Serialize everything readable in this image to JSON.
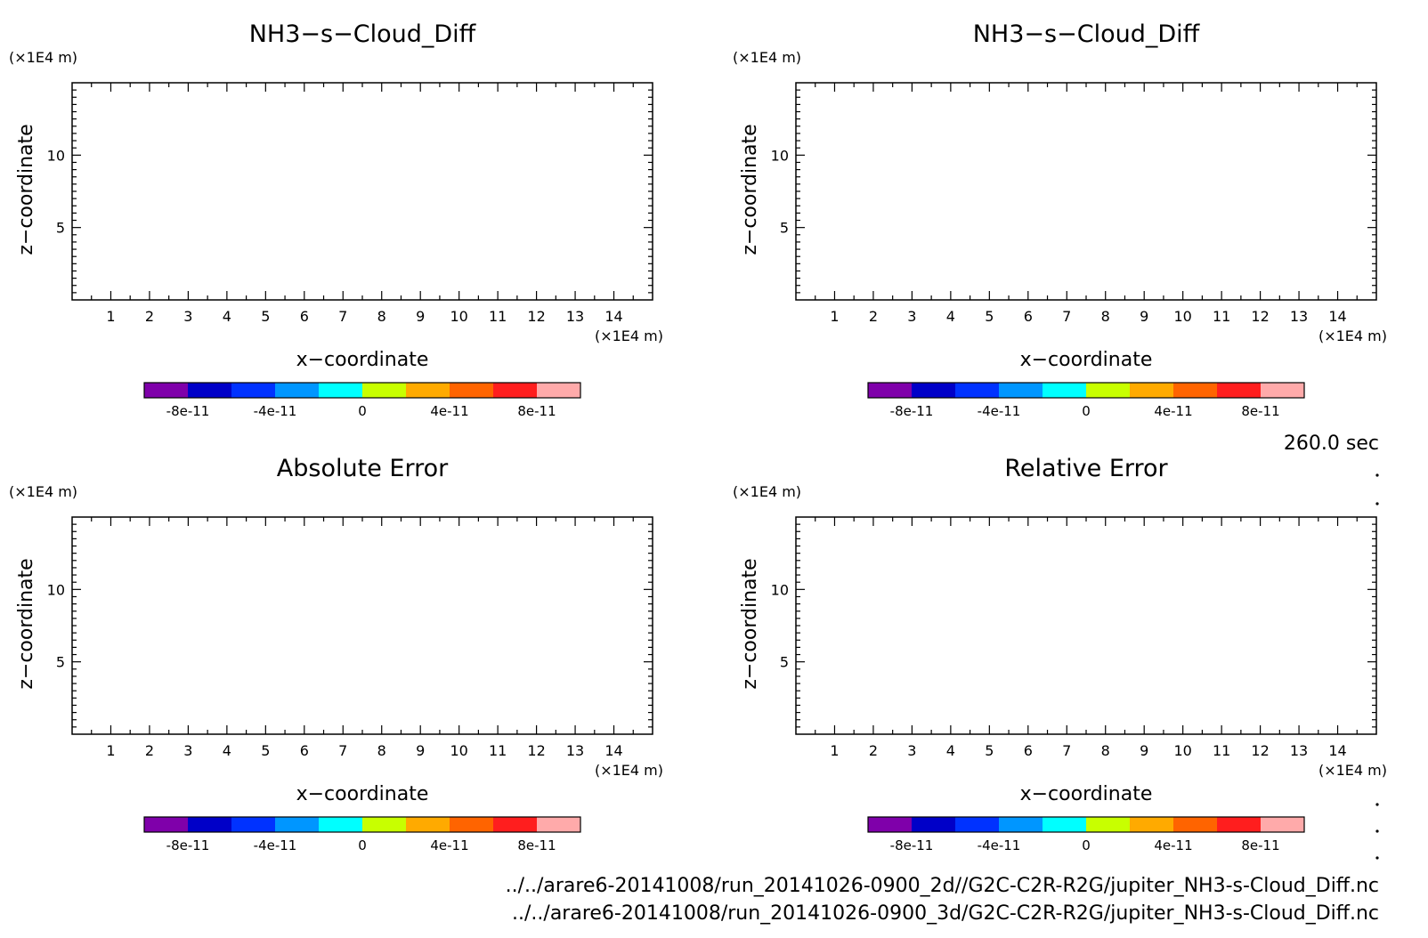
{
  "time_label": "260.0 sec",
  "file_paths": [
    "../../arare6-20141008/run_20141026-0900_2d//G2C-C2R-R2G/jupiter_NH3-s-Cloud_Diff.nc",
    "../../arare6-20141008/run_20141026-0900_3d/G2C-C2R-R2G/jupiter_NH3-s-Cloud_Diff.nc"
  ],
  "colorbar": {
    "colors": [
      "#7f00aa",
      "#0000c8",
      "#0032ff",
      "#0096ff",
      "#00ffff",
      "#c8ff00",
      "#ffaa00",
      "#ff6400",
      "#ff1e1e",
      "#ffaaaa"
    ],
    "tick_labels": [
      "-8e-11",
      "-4e-11",
      "0",
      "4e-11",
      "8e-11"
    ],
    "tick_values": [
      -8e-11,
      -4e-11,
      0,
      4e-11,
      8e-11
    ],
    "range": [
      -1e-10,
      1e-10
    ]
  },
  "chart_data": [
    {
      "type": "heatmap",
      "title": "NH3−s−Cloud_Diff",
      "xlabel": "x−coordinate",
      "ylabel": "z−coordinate",
      "xunit": "(×1E4 m)",
      "yunit": "(×1E4 m)",
      "xlim": [
        0,
        15
      ],
      "ylim": [
        0,
        15
      ],
      "xticks": [
        1,
        2,
        3,
        4,
        5,
        6,
        7,
        8,
        9,
        10,
        11,
        12,
        13,
        14
      ],
      "yticks": [
        5,
        10
      ],
      "values": []
    },
    {
      "type": "heatmap",
      "title": "NH3−s−Cloud_Diff",
      "xlabel": "x−coordinate",
      "ylabel": "z−coordinate",
      "xunit": "(×1E4 m)",
      "yunit": "(×1E4 m)",
      "xlim": [
        0,
        15
      ],
      "ylim": [
        0,
        15
      ],
      "xticks": [
        1,
        2,
        3,
        4,
        5,
        6,
        7,
        8,
        9,
        10,
        11,
        12,
        13,
        14
      ],
      "yticks": [
        5,
        10
      ],
      "values": []
    },
    {
      "type": "heatmap",
      "title": "Absolute Error",
      "xlabel": "x−coordinate",
      "ylabel": "z−coordinate",
      "xunit": "(×1E4 m)",
      "yunit": "(×1E4 m)",
      "xlim": [
        0,
        15
      ],
      "ylim": [
        0,
        15
      ],
      "xticks": [
        1,
        2,
        3,
        4,
        5,
        6,
        7,
        8,
        9,
        10,
        11,
        12,
        13,
        14
      ],
      "yticks": [
        5,
        10
      ],
      "values": []
    },
    {
      "type": "heatmap",
      "title": "Relative Error",
      "xlabel": "x−coordinate",
      "ylabel": "z−coordinate",
      "xunit": "(×1E4 m)",
      "yunit": "(×1E4 m)",
      "xlim": [
        0,
        15
      ],
      "ylim": [
        0,
        15
      ],
      "xticks": [
        1,
        2,
        3,
        4,
        5,
        6,
        7,
        8,
        9,
        10,
        11,
        12,
        13,
        14
      ],
      "yticks": [
        5,
        10
      ],
      "values": []
    }
  ]
}
